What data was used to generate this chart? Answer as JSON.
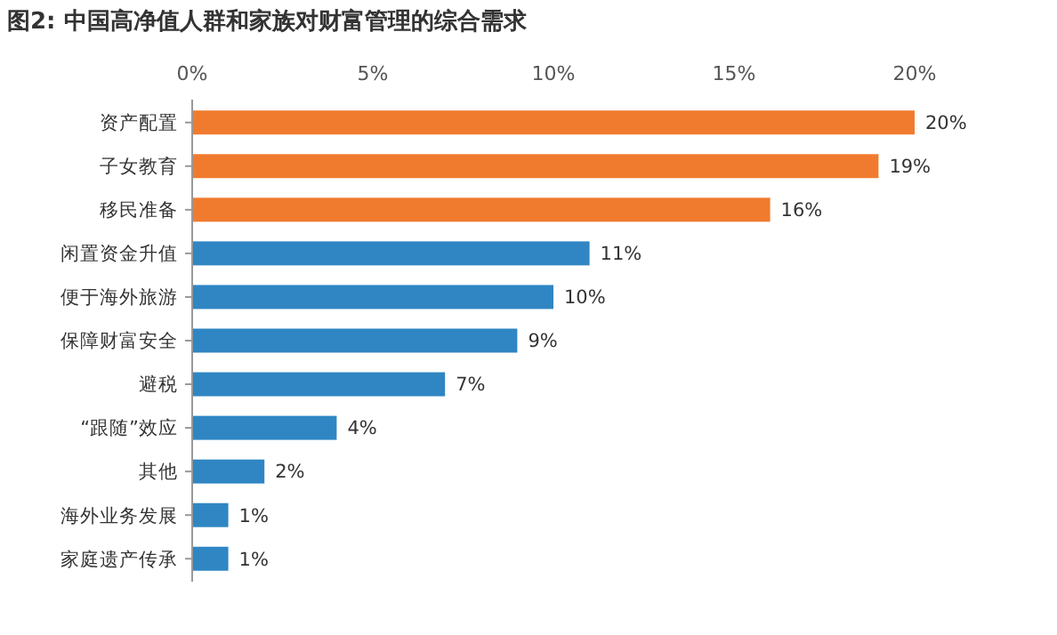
{
  "chart_data": {
    "type": "bar",
    "orientation": "horizontal",
    "title": "图2: 中国高净值人群和家族对财富管理的综合需求",
    "categories": [
      "资产配置",
      "子女教育",
      "移民准备",
      "闲置资金升值",
      "便于海外旅游",
      "保障财富安全",
      "避税",
      "“跟随”效应",
      "其他",
      "海外业务发展",
      "家庭遗产传承"
    ],
    "values": [
      20,
      19,
      16,
      11,
      10,
      9,
      7,
      4,
      2,
      1,
      1
    ],
    "value_labels": [
      "20%",
      "19%",
      "16%",
      "11%",
      "10%",
      "9%",
      "7%",
      "4%",
      "2%",
      "1%",
      "1%"
    ],
    "colors": [
      "#f07b2e",
      "#f07b2e",
      "#f07b2e",
      "#2f86c3",
      "#2f86c3",
      "#2f86c3",
      "#2f86c3",
      "#2f86c3",
      "#2f86c3",
      "#2f86c3",
      "#2f86c3"
    ],
    "xlim": [
      0,
      20
    ],
    "xticks": [
      {
        "value": 0,
        "label": "0%"
      },
      {
        "value": 5,
        "label": "5%"
      },
      {
        "value": 10,
        "label": "10%"
      },
      {
        "value": 15,
        "label": "15%"
      },
      {
        "value": 20,
        "label": "20%"
      }
    ],
    "grid": false
  }
}
